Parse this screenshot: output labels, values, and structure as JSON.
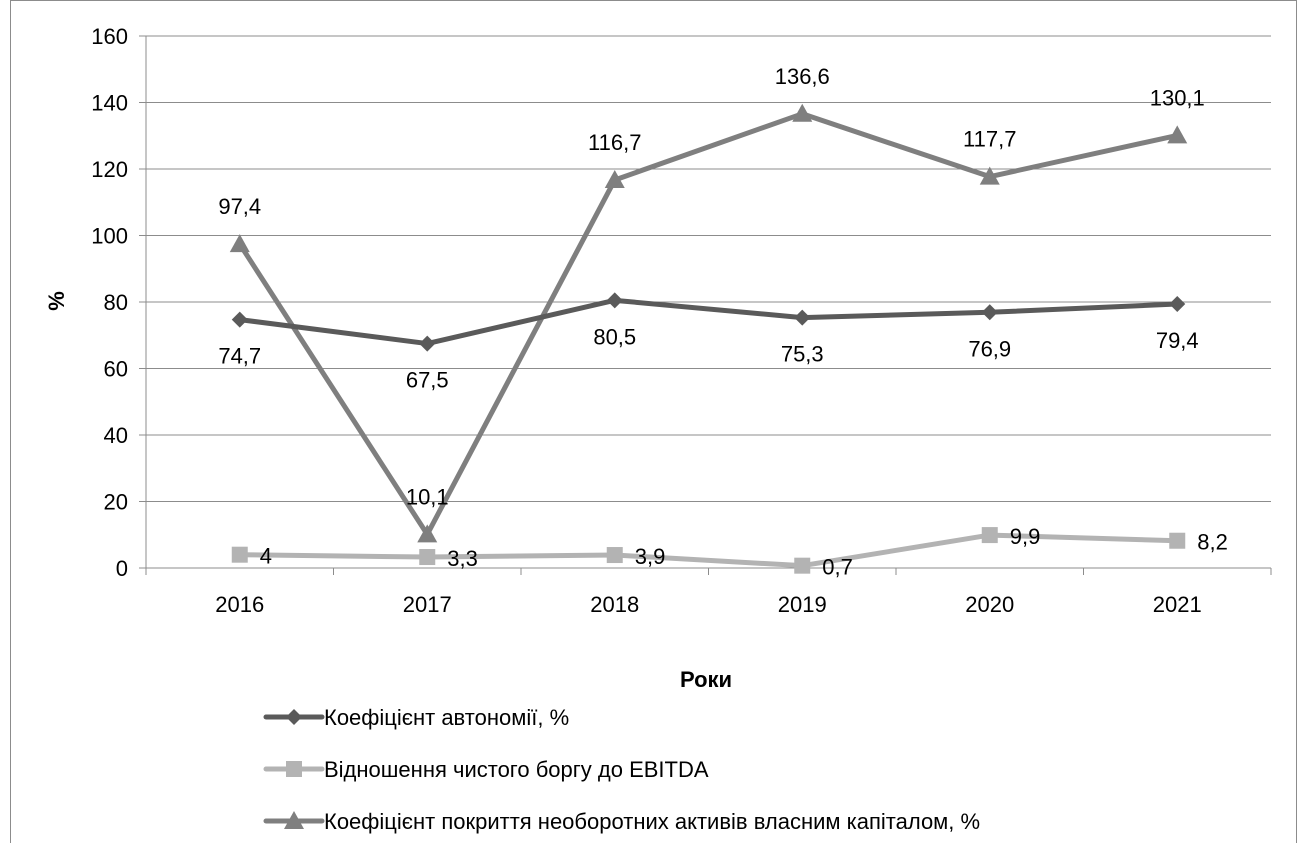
{
  "chart_data": {
    "type": "line",
    "title": "",
    "xlabel": "Роки",
    "ylabel": "%",
    "ylim": [
      0,
      160
    ],
    "yticks": [
      "0",
      "20",
      "40",
      "60",
      "80",
      "100",
      "120",
      "140",
      "160"
    ],
    "categories": [
      "2016",
      "2017",
      "2018",
      "2019",
      "2020",
      "2021"
    ],
    "grid": "horizontal",
    "legend_position": "bottom",
    "series": [
      {
        "name": "Коефіцієнт автономії, %",
        "values": [
          74.7,
          67.5,
          80.5,
          75.3,
          76.9,
          79.4
        ],
        "labels": [
          "74,7",
          "67,5",
          "80,5",
          "75,3",
          "76,9",
          "79,4"
        ],
        "marker": "diamond",
        "color": "#5a5a5a",
        "label_position": "below"
      },
      {
        "name": "Відношення чистого боргу до EBITDA",
        "values": [
          4,
          3.3,
          3.9,
          0.7,
          9.9,
          8.2
        ],
        "labels": [
          "4",
          "3,3",
          "3,9",
          "0,7",
          "9,9",
          "8,2"
        ],
        "marker": "square",
        "color": "#b3b3b3",
        "label_position": "right"
      },
      {
        "name": "Коефіцієнт покриття необоротних активів власним капіталом, %",
        "values": [
          97.4,
          10.1,
          116.7,
          136.6,
          117.7,
          130.1
        ],
        "labels": [
          "97,4",
          "10,1",
          "116,7",
          "136,6",
          "117,7",
          "130,1"
        ],
        "marker": "triangle",
        "color": "#7f7f7f",
        "label_position": "above"
      }
    ]
  }
}
